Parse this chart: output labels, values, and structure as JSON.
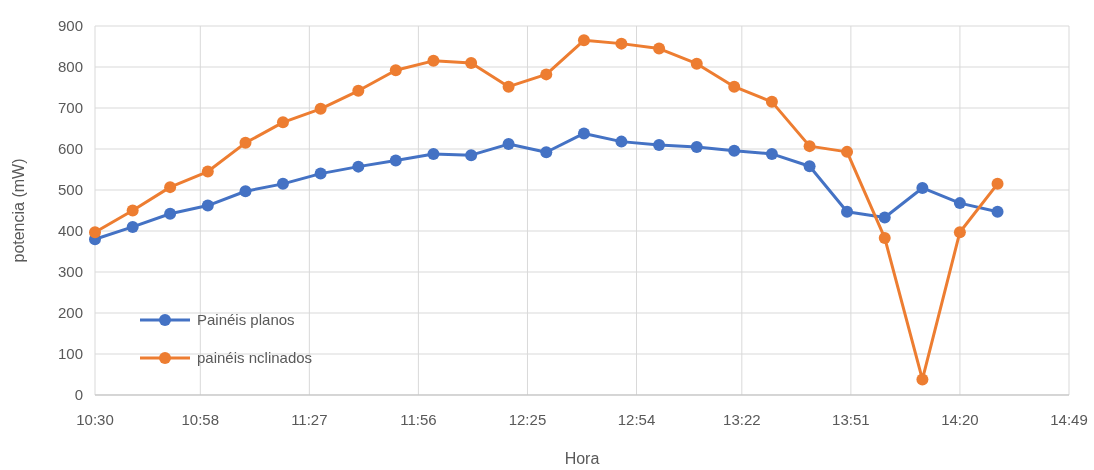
{
  "chart_data": {
    "type": "line",
    "xlabel": "Hora",
    "ylabel": "potencia (mW)",
    "x": [
      10.5,
      10.667,
      10.833,
      11,
      11.167,
      11.333,
      11.5,
      11.667,
      11.833,
      12,
      12.167,
      12.333,
      12.5,
      12.667,
      12.833,
      13,
      13.167,
      13.333,
      13.5,
      13.667,
      13.833,
      14,
      14.167,
      14.333,
      14.5
    ],
    "series": [
      {
        "name": "Painéis planos",
        "color": "#4472c4",
        "values": [
          380,
          410,
          442,
          462,
          497,
          515,
          540,
          557,
          572,
          588,
          585,
          612,
          592,
          638,
          618,
          610,
          605,
          596,
          588,
          558,
          447,
          433,
          505,
          468,
          447
        ]
      },
      {
        "name": "painéis nclinados",
        "color": "#ed7d31",
        "values": [
          397,
          450,
          507,
          545,
          615,
          665,
          698,
          742,
          792,
          815,
          810,
          752,
          782,
          865,
          857,
          845,
          808,
          752,
          715,
          607,
          593,
          383,
          38,
          397,
          515
        ]
      }
    ],
    "xlim": [
      10.5,
      14.8167
    ],
    "xticks": [
      {
        "value": 10.5,
        "label": "10:30"
      },
      {
        "value": 10.9667,
        "label": "10:58"
      },
      {
        "value": 11.45,
        "label": "11:27"
      },
      {
        "value": 11.9333,
        "label": "11:56"
      },
      {
        "value": 12.4167,
        "label": "12:25"
      },
      {
        "value": 12.9,
        "label": "12:54"
      },
      {
        "value": 13.3667,
        "label": "13:22"
      },
      {
        "value": 13.85,
        "label": "13:51"
      },
      {
        "value": 14.3333,
        "label": "14:20"
      },
      {
        "value": 14.8167,
        "label": "14:49"
      }
    ],
    "ylim": [
      0,
      900
    ],
    "yticks": [
      0,
      100,
      200,
      300,
      400,
      500,
      600,
      700,
      800,
      900
    ],
    "grid": true,
    "legend": "bottom left",
    "marker": "circle",
    "line_style": "solid"
  }
}
